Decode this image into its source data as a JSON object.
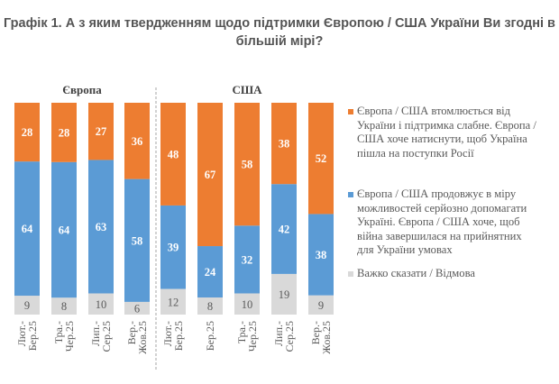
{
  "title": "Графік 1. А з яким твердженням щодо підтримки Європою / США України Ви згодні в більшій мірі?",
  "chart_data": {
    "type": "bar",
    "stacked": true,
    "title": "Графік 1. А з яким твердженням щодо підтримки Європою / США України Ви згодні в більшій мірі?",
    "xlabel": "",
    "ylabel": "",
    "ylim": [
      0,
      100
    ],
    "grid": false,
    "legend_position": "right",
    "groups": [
      {
        "name": "Європа",
        "categories": [
          "Лют.-Бер.25",
          "Тра.-Чер.25",
          "Лип.-Сер.25",
          "Вер.-Жов.25"
        ]
      },
      {
        "name": "США",
        "categories": [
          "Лют.-Бер.25",
          "Бер.25",
          "Тра.-Чер.25",
          "Лип.-Сер.25",
          "Вер.-Жов.25"
        ]
      }
    ],
    "categories": [
      [
        "Лют.-",
        "Бер.25"
      ],
      [
        "Тра.-",
        "Чер.25"
      ],
      [
        "Лип.-",
        "Сер.25"
      ],
      [
        "Вер.-",
        "Жов.25"
      ],
      [
        "Лют.-",
        "Бер.25"
      ],
      [
        "Бер.25"
      ],
      [
        "Тра.-",
        "Чер.25"
      ],
      [
        "Лип.-",
        "Сер.25"
      ],
      [
        "Вер.-",
        "Жов.25"
      ]
    ],
    "series": [
      {
        "name": "Важко сказати / Відмова",
        "color": "#D9D9D9",
        "label_color": "#595959",
        "values": [
          9,
          8,
          10,
          6,
          12,
          8,
          10,
          19,
          9
        ]
      },
      {
        "name": "Європа / США продовжує в міру можливостей серйозно допомагати Україні. Європа / США хоче, щоб війна завершилася на прийнятних для України умовах",
        "color": "#5B9BD5",
        "label_color": "#FFFFFF",
        "values": [
          64,
          64,
          63,
          58,
          39,
          24,
          32,
          42,
          38
        ]
      },
      {
        "name": "Європа / США втомлюється від України і підтримка слабне. Європа / США хоче натиснути, щоб Україна пішла на поступки Росії",
        "color": "#ED7D31",
        "label_color": "#FFFFFF",
        "values": [
          28,
          28,
          27,
          36,
          48,
          67,
          58,
          38,
          52
        ]
      }
    ]
  },
  "legend": {
    "items": [
      {
        "color": "#ED7D31",
        "lines": [
          "Європа / США втомлюється від",
          "України і підтримка слабне. Європа /",
          "США хоче натиснути, щоб Україна",
          "пішла на поступки Росії"
        ]
      },
      {
        "color": "#5B9BD5",
        "lines": [
          "Європа / США продовжує в міру",
          "можливостей серйозно допомагати",
          "Україні. Європа / США хоче, щоб",
          "війна завершилася на прийнятних",
          "для України умовах"
        ]
      },
      {
        "color": "#D9D9D9",
        "lines": [
          "Важко сказати / Відмова"
        ]
      }
    ]
  }
}
